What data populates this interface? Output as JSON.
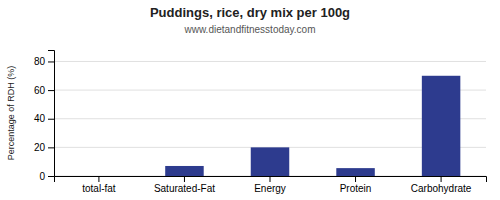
{
  "chart_data": {
    "type": "bar",
    "title": "Puddings, rice, dry mix per 100g",
    "subtitle": "www.dietandfitnesstoday.com",
    "categories": [
      "total-fat",
      "Saturated-Fat",
      "Energy",
      "Protein",
      "Carbohydrate"
    ],
    "values": [
      0,
      7,
      20,
      5.5,
      70
    ],
    "color": "#2d3b8e",
    "ylabel": "Percentage of RDH (%)",
    "ylim": [
      0,
      88
    ],
    "yticks": [
      0,
      20,
      40,
      60,
      80
    ],
    "grid": true
  }
}
